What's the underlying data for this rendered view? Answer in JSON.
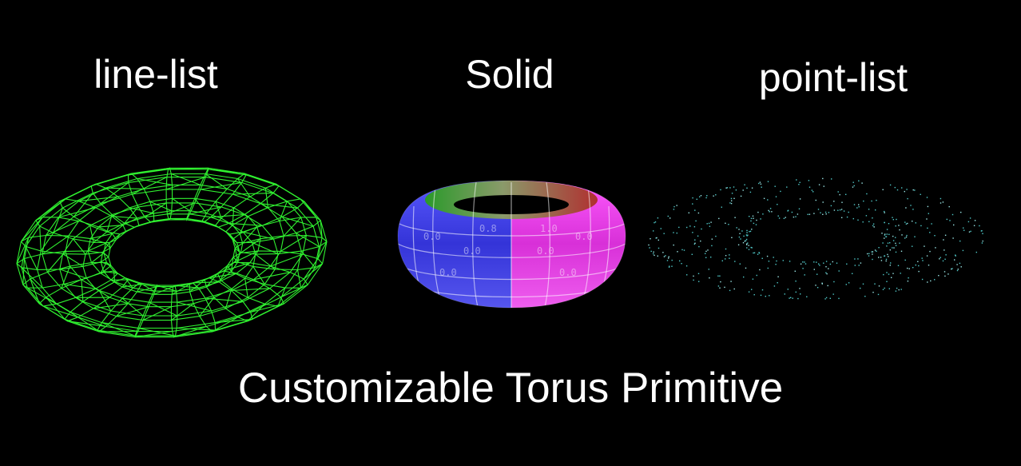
{
  "labels": {
    "wireframe": "line-list",
    "solid": "Solid",
    "points": "point-list"
  },
  "caption": "Customizable Torus Primitive",
  "colors": {
    "background": "#000000",
    "wireframe": "#33ff33",
    "points": "#66e0e0",
    "text": "#ffffff",
    "solid_blue": "#3a3ae0",
    "solid_magenta": "#e040e0",
    "solid_green": "#40c040",
    "solid_red": "#d04040"
  }
}
